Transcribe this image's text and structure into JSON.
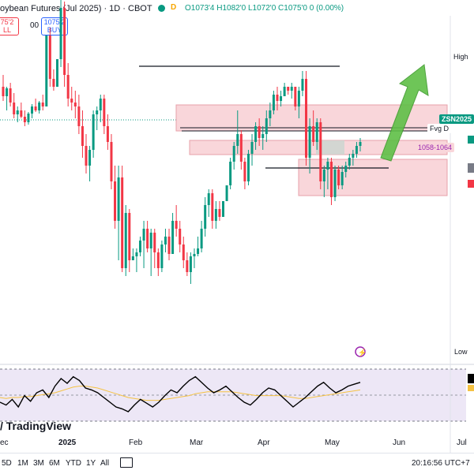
{
  "header": {
    "title": "oybean Futures (Jul 2025) · 1D · CBOT",
    "session_badge": "D",
    "ohlc": "O1073'4 H1082'0 L1072'0 C1075'0 0 (0.00%)",
    "sell_price": "75'2",
    "sell_label": "LL",
    "spread": "00",
    "buy_price": "1075'2",
    "buy_label": "BUY"
  },
  "price_axis": {
    "high_label": "High",
    "low_label": "Low",
    "symbol_tag": "ZSN2025"
  },
  "annotations": {
    "fvg_label": "Fvg D",
    "zone_label": "1058-1064"
  },
  "x_axis": {
    "labels": [
      "ec",
      "2025",
      "Feb",
      "Mar",
      "Apr",
      "May",
      "Jun",
      "Jul"
    ]
  },
  "branding": {
    "logo_text": "TradingView"
  },
  "timeframes": [
    "5D",
    "1M",
    "3M",
    "6M",
    "YTD",
    "1Y",
    "All"
  ],
  "clock": "20:16:56 UTC+7",
  "colors": {
    "up": "#089981",
    "down": "#f23645",
    "zone": "#f9d6da",
    "arrow": "#5fbf47",
    "rsi": "#000000",
    "rsi_ma": "#f5c242"
  },
  "chart_data": {
    "type": "candlestick",
    "series": [
      {
        "name": "",
        "values": [
          [
            330,
            345,
            312,
            318
          ],
          [
            318,
            330,
            300,
            328
          ],
          [
            328,
            335,
            305,
            310
          ],
          [
            310,
            322,
            290,
            295
          ],
          [
            295,
            305,
            285,
            300
          ],
          [
            300,
            310,
            290,
            292
          ],
          [
            292,
            300,
            280,
            285
          ],
          [
            285,
            298,
            282,
            296
          ],
          [
            296,
            308,
            290,
            305
          ],
          [
            305,
            315,
            298,
            300
          ],
          [
            300,
            312,
            296,
            310
          ],
          [
            310,
            320,
            300,
            305
          ],
          [
            305,
            320,
            380,
            395
          ],
          [
            395,
            405,
            330,
            340
          ],
          [
            340,
            352,
            325,
            330
          ],
          [
            330,
            345,
            350,
            365
          ],
          [
            365,
            440,
            355,
            430
          ],
          [
            430,
            438,
            330,
            345
          ],
          [
            345,
            360,
            305,
            315
          ],
          [
            315,
            330,
            300,
            310
          ],
          [
            310,
            325,
            290,
            305
          ],
          [
            305,
            320,
            270,
            280
          ],
          [
            280,
            300,
            240,
            255
          ],
          [
            255,
            270,
            220,
            230
          ],
          [
            230,
            255,
            210,
            250
          ],
          [
            250,
            300,
            240,
            295
          ],
          [
            295,
            305,
            275,
            300
          ],
          [
            300,
            320,
            285,
            315
          ],
          [
            315,
            320,
            270,
            280
          ],
          [
            280,
            295,
            250,
            260
          ],
          [
            260,
            270,
            200,
            210
          ],
          [
            210,
            230,
            150,
            160
          ],
          [
            160,
            230,
            110,
            215
          ],
          [
            215,
            230,
            95,
            100
          ],
          [
            100,
            180,
            90,
            170
          ],
          [
            170,
            175,
            95,
            110
          ],
          [
            110,
            125,
            110,
            115
          ],
          [
            115,
            125,
            95,
            120
          ],
          [
            120,
            140,
            115,
            135
          ],
          [
            135,
            160,
            100,
            150
          ],
          [
            150,
            160,
            120,
            125
          ],
          [
            125,
            150,
            90,
            145
          ],
          [
            145,
            150,
            100,
            120
          ],
          [
            120,
            125,
            90,
            100
          ],
          [
            100,
            135,
            95,
            130
          ],
          [
            130,
            150,
            120,
            140
          ],
          [
            140,
            150,
            110,
            118
          ],
          [
            118,
            170,
            150,
            160
          ],
          [
            160,
            180,
            140,
            150
          ],
          [
            150,
            160,
            120,
            130
          ],
          [
            130,
            140,
            100,
            110
          ],
          [
            110,
            120,
            90,
            95
          ],
          [
            95,
            120,
            80,
            115
          ],
          [
            115,
            125,
            100,
            118
          ],
          [
            118,
            140,
            115,
            125
          ],
          [
            125,
            160,
            120,
            150
          ],
          [
            150,
            190,
            140,
            180
          ],
          [
            180,
            200,
            165,
            195
          ],
          [
            195,
            200,
            150,
            160
          ],
          [
            160,
            185,
            150,
            175
          ],
          [
            175,
            185,
            160,
            165
          ],
          [
            165,
            175,
            180,
            185
          ],
          [
            185,
            190,
            200,
            205
          ],
          [
            205,
            240,
            200,
            235
          ],
          [
            235,
            260,
            225,
            255
          ],
          [
            255,
            300,
            245,
            270
          ],
          [
            270,
            275,
            225,
            235
          ],
          [
            235,
            240,
            200,
            210
          ],
          [
            210,
            250,
            205,
            245
          ],
          [
            245,
            270,
            230,
            260
          ],
          [
            260,
            285,
            250,
            280
          ],
          [
            280,
            290,
            255,
            265
          ],
          [
            265,
            280,
            250,
            270
          ],
          [
            270,
            300,
            260,
            290
          ],
          [
            290,
            310,
            280,
            300
          ],
          [
            300,
            325,
            295,
            320
          ],
          [
            320,
            330,
            300,
            312
          ],
          [
            312,
            325,
            305,
            318
          ],
          [
            318,
            335,
            330,
            330
          ],
          [
            330,
            330,
            320,
            325
          ],
          [
            325,
            335,
            315,
            330
          ],
          [
            330,
            330,
            300,
            305
          ],
          [
            305,
            330,
            290,
            325
          ],
          [
            325,
            350,
            318,
            340
          ],
          [
            340,
            350,
            230,
            240
          ],
          [
            240,
            290,
            220,
            280
          ],
          [
            280,
            300,
            255,
            260
          ],
          [
            260,
            290,
            250,
            285
          ],
          [
            285,
            290,
            200,
            210
          ],
          [
            210,
            230,
            190,
            225
          ],
          [
            225,
            240,
            200,
            235
          ],
          [
            235,
            240,
            180,
            190
          ],
          [
            190,
            230,
            185,
            225
          ],
          [
            225,
            230,
            200,
            205
          ],
          [
            205,
            230,
            200,
            222
          ],
          [
            222,
            235,
            215,
            230
          ],
          [
            230,
            245,
            225,
            240
          ],
          [
            240,
            250,
            230,
            245
          ],
          [
            245,
            260,
            240,
            255
          ],
          [
            255,
            265,
            248,
            260
          ]
        ]
      }
    ],
    "rsi": {
      "name": "",
      "values": [
        45,
        42,
        48,
        40,
        52,
        46,
        55,
        58,
        50,
        62,
        70,
        65,
        72,
        68,
        60,
        58,
        55,
        50,
        45,
        40,
        38,
        35,
        42,
        48,
        44,
        40,
        45,
        52,
        58,
        55,
        62,
        68,
        72,
        66,
        60,
        55,
        58,
        62,
        56,
        50,
        45,
        42,
        48,
        55,
        60,
        58,
        52,
        46,
        40,
        45,
        50,
        56,
        62,
        66,
        60,
        55,
        58,
        62,
        64,
        66
      ]
    },
    "rsi_ma": {
      "name": "",
      "values": [
        50,
        49,
        50,
        50,
        51,
        51,
        52,
        53,
        54,
        55,
        57,
        59,
        61,
        62,
        62,
        61,
        60,
        58,
        56,
        54,
        52,
        50,
        49,
        48,
        47,
        47,
        47,
        48,
        49,
        50,
        51,
        52,
        54,
        55,
        56,
        56,
        56,
        56,
        56,
        55,
        54,
        53,
        52,
        52,
        52,
        52,
        52,
        51,
        50,
        49,
        49,
        50,
        51,
        52,
        53,
        54,
        55,
        56,
        57,
        58
      ]
    }
  }
}
